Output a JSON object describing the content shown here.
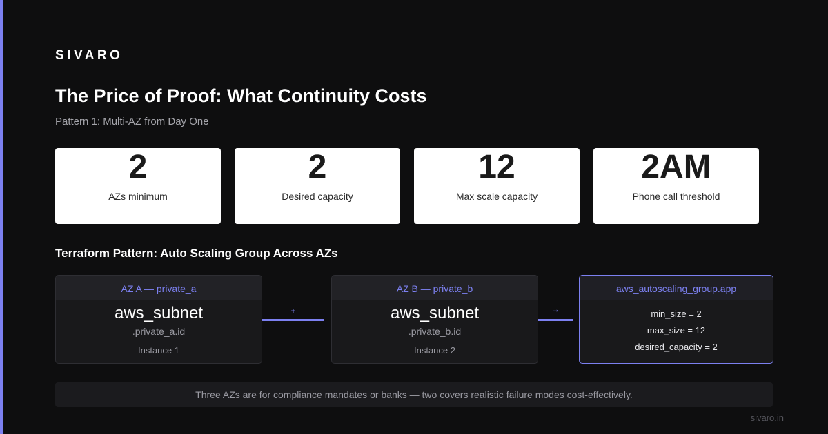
{
  "brand": "SIVARO",
  "title": "The Price of Proof: What Continuity Costs",
  "subtitle": "Pattern 1: Multi-AZ from Day One",
  "stats": [
    {
      "value": "2",
      "label": "AZs minimum"
    },
    {
      "value": "2",
      "label": "Desired capacity"
    },
    {
      "value": "12",
      "label": "Max scale capacity"
    },
    {
      "value": "2AM",
      "label": "Phone call threshold"
    }
  ],
  "section_heading": "Terraform Pattern: Auto Scaling Group Across AZs",
  "diagram": {
    "node_a": {
      "header": "AZ A — private_a",
      "title": "aws_subnet",
      "sub": ".private_a.id",
      "instance": "Instance 1"
    },
    "node_b": {
      "header": "AZ B — private_b",
      "title": "aws_subnet",
      "sub": ".private_b.id",
      "instance": "Instance 2"
    },
    "asg": {
      "header": "aws_autoscaling_group.app",
      "lines": [
        "min_size = 2",
        "max_size = 12",
        "desired_capacity = 2"
      ]
    },
    "connector_1_label": "+",
    "connector_2_label": "→"
  },
  "footnote": "Three AZs are for compliance mandates or banks — two covers realistic failure modes cost-effectively.",
  "site": "sivaro.in",
  "colors": {
    "accent": "#7c80f0",
    "background": "#0e0e0f",
    "card": "#ffffff"
  }
}
